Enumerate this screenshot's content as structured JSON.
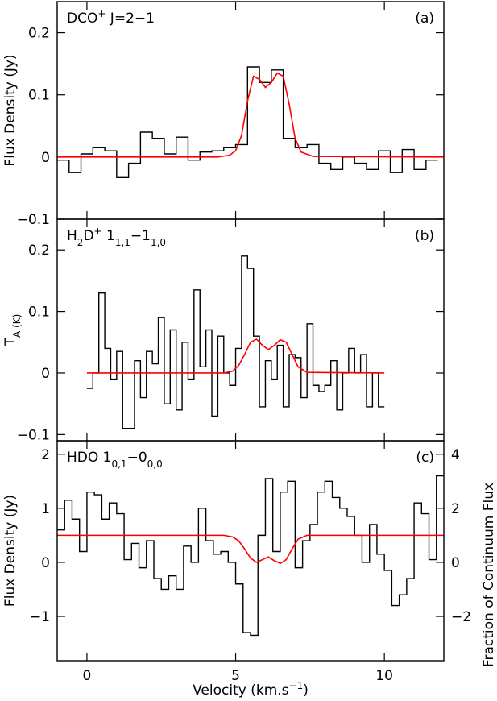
{
  "chart_data": [
    {
      "type": "step",
      "label": "(a)",
      "title_parts": [
        "DCO",
        "+",
        " J=2−1"
      ],
      "title_format": [
        "",
        "sup",
        ""
      ],
      "ylabel_parts": [
        "Flux Density (Jy)"
      ],
      "ylabel_format": [
        ""
      ],
      "xlim": [
        -1,
        12
      ],
      "xticks": [
        0,
        5,
        10
      ],
      "ylim": [
        -0.1,
        0.25
      ],
      "yticks": [
        {
          "value": -0.1,
          "label": "−0.1"
        },
        0,
        0.1,
        0.2
      ],
      "series": [
        {
          "type": "step",
          "color": "#000000",
          "x": [
            -0.8,
            -0.4,
            0,
            0.4,
            0.8,
            1.2,
            1.6,
            2.0,
            2.4,
            2.8,
            3.2,
            3.6,
            4.0,
            4.4,
            4.8,
            5.2,
            5.6,
            6.0,
            6.4,
            6.8,
            7.2,
            7.6,
            8.0,
            8.4,
            8.8,
            9.2,
            9.6,
            10.0,
            10.4,
            10.8,
            11.2,
            11.6
          ],
          "values": [
            -0.005,
            -0.025,
            0.005,
            0.015,
            0.01,
            -0.033,
            -0.01,
            0.04,
            0.03,
            0.005,
            0.032,
            -0.005,
            0.008,
            0.01,
            0.015,
            0.02,
            0.145,
            0.12,
            0.14,
            0.03,
            0.015,
            0.02,
            -0.01,
            -0.02,
            0.0,
            -0.01,
            -0.02,
            0.01,
            -0.025,
            0.012,
            -0.02,
            -0.005
          ]
        },
        {
          "type": "line",
          "color": "#ff0000",
          "x": [
            -1,
            4.4,
            4.8,
            5.0,
            5.2,
            5.4,
            5.6,
            5.8,
            6.0,
            6.2,
            6.4,
            6.6,
            6.8,
            7.0,
            7.2,
            7.6,
            12
          ],
          "values": [
            0,
            0,
            0.003,
            0.01,
            0.035,
            0.09,
            0.13,
            0.125,
            0.112,
            0.12,
            0.135,
            0.13,
            0.085,
            0.03,
            0.008,
            0.001,
            0
          ]
        }
      ]
    },
    {
      "type": "step",
      "label": "(b)",
      "title_parts": [
        "H",
        "2",
        "D",
        "+",
        "  1",
        "1,1",
        "−1",
        "1,0"
      ],
      "title_format": [
        "",
        "sub",
        "",
        "sup",
        "",
        "sub",
        "",
        "sub"
      ],
      "ylabel_parts": [
        "T",
        "A (K)"
      ],
      "ylabel_format": [
        "",
        "sub"
      ],
      "xlim": [
        -1,
        12
      ],
      "xticks": [
        0,
        5,
        10
      ],
      "ylim": [
        -0.11,
        0.25
      ],
      "yticks": [
        {
          "value": -0.1,
          "label": "−0.1"
        },
        0,
        0.1,
        0.2
      ],
      "series": [
        {
          "type": "step",
          "color": "#000000",
          "x": [
            0.1,
            0.3,
            0.5,
            0.7,
            0.9,
            1.1,
            1.3,
            1.5,
            1.7,
            1.9,
            2.1,
            2.3,
            2.5,
            2.7,
            2.9,
            3.1,
            3.3,
            3.5,
            3.7,
            3.9,
            4.1,
            4.3,
            4.5,
            4.7,
            4.9,
            5.1,
            5.3,
            5.5,
            5.7,
            5.9,
            6.1,
            6.3,
            6.5,
            6.7,
            6.9,
            7.1,
            7.3,
            7.5,
            7.7,
            7.9,
            8.1,
            8.3,
            8.5,
            8.7,
            8.9,
            9.1,
            9.3,
            9.5,
            9.7,
            9.9
          ],
          "values": [
            -0.025,
            0.0,
            0.13,
            0.04,
            -0.01,
            0.035,
            -0.09,
            -0.09,
            0.02,
            -0.04,
            0.035,
            0.015,
            0.09,
            -0.05,
            0.07,
            -0.06,
            0.05,
            -0.01,
            0.135,
            0.01,
            0.07,
            -0.07,
            0.06,
            0.0,
            -0.02,
            0.04,
            0.19,
            0.17,
            0.06,
            -0.055,
            0.02,
            -0.01,
            0.045,
            -0.055,
            0.03,
            0.025,
            -0.04,
            0.08,
            -0.02,
            -0.03,
            -0.02,
            0.02,
            -0.06,
            0.0,
            0.04,
            0.0,
            0.03,
            -0.055,
            0.0,
            -0.055
          ]
        },
        {
          "type": "line",
          "color": "#ff0000",
          "x": [
            0,
            4.6,
            4.9,
            5.1,
            5.3,
            5.5,
            5.7,
            5.9,
            6.1,
            6.3,
            6.5,
            6.7,
            6.9,
            7.1,
            7.4,
            10
          ],
          "values": [
            0,
            0,
            0.003,
            0.012,
            0.03,
            0.05,
            0.055,
            0.045,
            0.038,
            0.045,
            0.054,
            0.05,
            0.03,
            0.01,
            0.001,
            0
          ]
        }
      ]
    },
    {
      "type": "step",
      "label": "(c)",
      "title_parts": [
        "HDO  1",
        "0,1",
        "−0",
        "0,0"
      ],
      "title_format": [
        "",
        "sub",
        "",
        "sub"
      ],
      "ylabel_parts": [
        "Flux Density (Jy)"
      ],
      "ylabel_format": [
        ""
      ],
      "y2label": "Fraction of Continuum Flux",
      "xlabel_parts": [
        "Velocity (km.s",
        "−1",
        ")"
      ],
      "xlabel_format": [
        "",
        "sup",
        ""
      ],
      "xlim": [
        -1,
        12
      ],
      "xticks": [
        0,
        5,
        10
      ],
      "ylim": [
        -1.82,
        2.25
      ],
      "yticks": [
        {
          "value": -1,
          "label": "−1"
        },
        0,
        1,
        2
      ],
      "y2lim": [
        -3.64,
        4.5
      ],
      "y2ticks": [
        {
          "value": -2,
          "label": "−2"
        },
        0,
        2,
        4
      ],
      "series": [
        {
          "type": "step",
          "color": "#000000",
          "x": [
            -0.875,
            -0.625,
            -0.375,
            -0.125,
            0.125,
            0.375,
            0.625,
            0.875,
            1.125,
            1.375,
            1.625,
            1.875,
            2.125,
            2.375,
            2.625,
            2.875,
            3.125,
            3.375,
            3.625,
            3.875,
            4.125,
            4.375,
            4.625,
            4.875,
            5.125,
            5.375,
            5.625,
            5.875,
            6.125,
            6.375,
            6.625,
            6.875,
            7.125,
            7.375,
            7.625,
            7.875,
            8.125,
            8.375,
            8.625,
            8.875,
            9.125,
            9.375,
            9.625,
            9.875,
            10.125,
            10.375,
            10.625,
            10.875,
            11.125,
            11.375,
            11.625,
            11.875
          ],
          "values": [
            0.6,
            1.15,
            0.8,
            0.2,
            1.3,
            1.25,
            0.8,
            1.1,
            0.9,
            0.05,
            0.35,
            -0.1,
            0.4,
            -0.3,
            -0.5,
            -0.25,
            -0.5,
            0.3,
            0.0,
            1.0,
            0.4,
            0.15,
            0.2,
            0.0,
            -0.4,
            -1.3,
            -1.35,
            0.5,
            1.55,
            0.2,
            1.3,
            1.5,
            -0.1,
            0.4,
            0.7,
            1.3,
            1.5,
            1.2,
            1.0,
            0.85,
            0.5,
            0.0,
            0.7,
            0.15,
            -0.15,
            -0.8,
            -0.6,
            -0.3,
            1.1,
            0.9,
            0.05,
            1.6
          ]
        },
        {
          "type": "line",
          "color": "#ff0000",
          "x": [
            -1,
            4.6,
            4.9,
            5.1,
            5.3,
            5.5,
            5.7,
            5.9,
            6.1,
            6.3,
            6.5,
            6.7,
            6.9,
            7.1,
            7.4,
            12
          ],
          "values": [
            0.5,
            0.5,
            0.47,
            0.4,
            0.25,
            0.08,
            0.0,
            0.05,
            0.1,
            0.03,
            -0.02,
            0.05,
            0.25,
            0.43,
            0.5,
            0.5
          ]
        }
      ]
    }
  ]
}
